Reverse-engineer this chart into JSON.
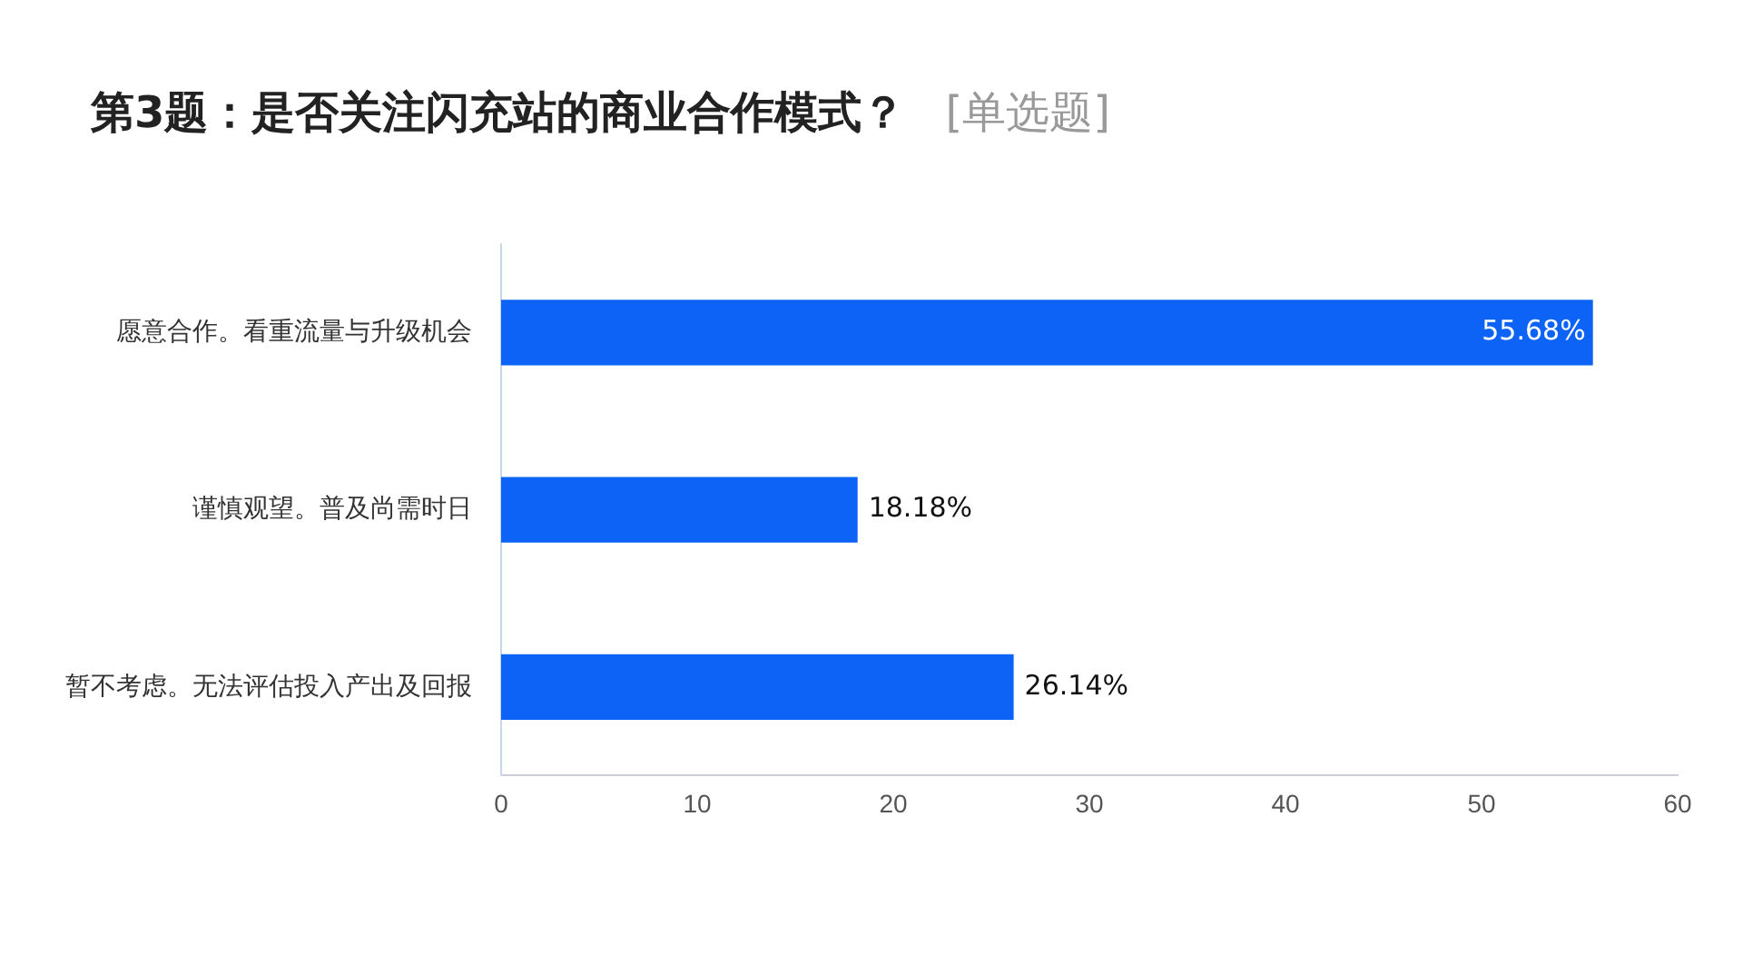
{
  "chart_data": {
    "type": "bar",
    "orientation": "horizontal",
    "title": "第3题：是否关注闪充站的商业合作模式？",
    "subtitle": "[单选题]",
    "categories": [
      "愿意合作。看重流量与升级机会",
      "谨慎观望。普及尚需时日",
      "暂不考虑。无法评估投入产出及回报"
    ],
    "values": [
      55.68,
      18.18,
      26.14
    ],
    "color": "#0d63f5",
    "value_labels": [
      "55.68%",
      "18.18%",
      "26.14%"
    ],
    "xlim": [
      0,
      60
    ],
    "xticks": [
      0,
      10,
      20,
      30,
      40,
      50,
      60
    ],
    "grid": false,
    "legend": false
  }
}
